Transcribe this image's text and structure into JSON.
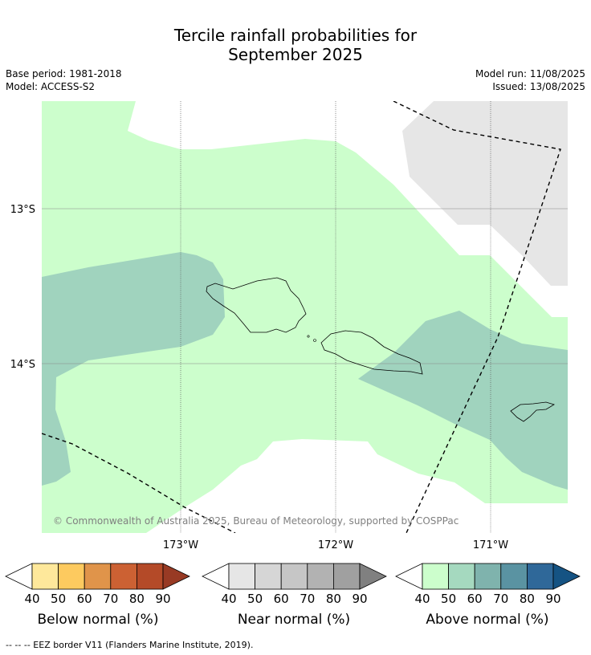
{
  "title_line1": "Tercile rainfall probabilities for",
  "title_line2": "September 2025",
  "base_period": "Base period: 1981-2018",
  "model": "Model: ACCESS-S2",
  "model_run": "Model run: 11/08/2025",
  "issued": "Issued: 13/08/2025",
  "lat_labels": [
    "13°S",
    "14°S"
  ],
  "lon_labels": [
    "173°W",
    "172°W",
    "171°W"
  ],
  "copyright": "© Commonwealth of Australia 2025, Bureau of Meteorology, supported by COSPPac",
  "colorbars": [
    {
      "title": "Below normal (%)",
      "ticks": [
        "40",
        "50",
        "60",
        "70",
        "80",
        "90"
      ],
      "colors": [
        "#fee89b",
        "#fdca5f",
        "#e0944a",
        "#cc6133",
        "#b44a28",
        "#983a24"
      ]
    },
    {
      "title": "Near normal (%)",
      "ticks": [
        "40",
        "50",
        "60",
        "70",
        "80",
        "90"
      ],
      "colors": [
        "#e6e6e6",
        "#d6d6d6",
        "#c6c6c6",
        "#b2b2b2",
        "#a0a0a0",
        "#808080"
      ]
    },
    {
      "title": "Above normal (%)",
      "ticks": [
        "40",
        "50",
        "60",
        "70",
        "80",
        "90"
      ],
      "colors": [
        "#ccfecc",
        "#a5d9bf",
        "#7fb3ad",
        "#5a93a2",
        "#2f6899",
        "#155383"
      ]
    }
  ],
  "footer": "--  --  -- EEZ border V11 (Flanders Marine Institute, 2019)."
}
